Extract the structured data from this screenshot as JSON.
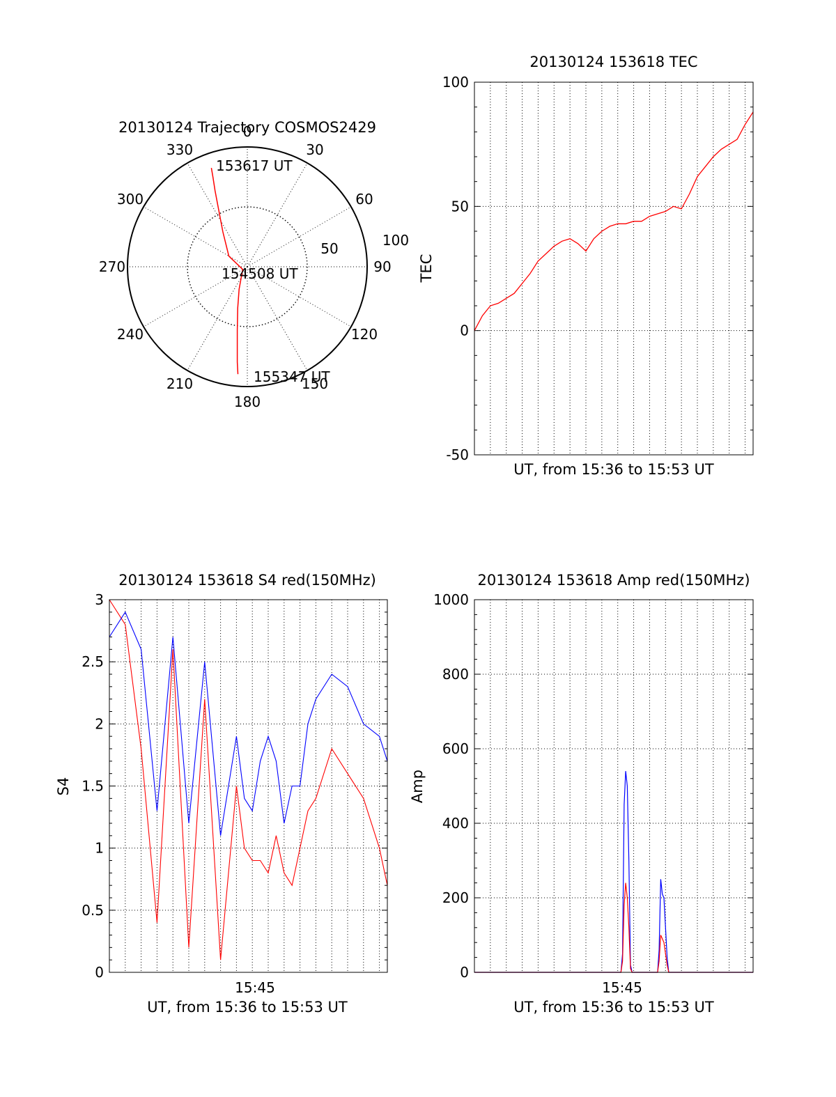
{
  "colors": {
    "red": "#ff0000",
    "blue": "#0000ff",
    "axis": "#000000"
  },
  "chart_data": [
    {
      "type": "polar-trajectory",
      "title": "20130124 Trajectory COSMOS2429",
      "azimuth_labels": [
        "0",
        "30",
        "60",
        "90",
        "120",
        "150",
        "180",
        "210",
        "240",
        "270",
        "300",
        "330"
      ],
      "radial_labels": [
        "50",
        "100"
      ],
      "elevation_range": [
        0,
        90
      ],
      "annotations": [
        "153617 UT",
        "154508 UT",
        "155347 UT"
      ],
      "series": [
        {
          "color": "red",
          "points": [
            {
              "az": 340,
              "el": 11
            },
            {
              "az": 339,
              "el": 18
            },
            {
              "az": 337,
              "el": 28
            },
            {
              "az": 334,
              "el": 40
            },
            {
              "az": 325,
              "el": 58
            },
            {
              "az": 300,
              "el": 74
            },
            {
              "az": 240,
              "el": 86
            },
            {
              "az": 200,
              "el": 72
            },
            {
              "az": 193,
              "el": 58
            },
            {
              "az": 189,
              "el": 42
            },
            {
              "az": 187,
              "el": 28
            },
            {
              "az": 186,
              "el": 18
            },
            {
              "az": 185,
              "el": 9
            }
          ]
        }
      ]
    },
    {
      "type": "line",
      "title": "20130124 153618 TEC",
      "xlabel": "UT, from 15:36 to 15:53 UT",
      "ylabel": "TEC",
      "xlim": [
        0,
        17.5
      ],
      "ylim": [
        -50,
        100
      ],
      "yticks": [
        "100",
        "50",
        "0",
        "-50"
      ],
      "grid": true,
      "series": [
        {
          "color": "red",
          "x": [
            0,
            0.5,
            1,
            1.5,
            2,
            2.5,
            3,
            3.5,
            4,
            4.5,
            5,
            5.5,
            6,
            6.5,
            7,
            7.5,
            8,
            8.5,
            9,
            9.5,
            10,
            10.5,
            11,
            11.5,
            12,
            12.5,
            13,
            13.5,
            14,
            14.5,
            15,
            15.5,
            16,
            16.5,
            17,
            17.5
          ],
          "y": [
            0,
            6,
            10,
            11,
            13,
            15,
            19,
            23,
            28,
            31,
            34,
            36,
            37,
            35,
            32,
            37,
            40,
            42,
            43,
            43,
            44,
            44,
            46,
            47,
            48,
            50,
            49,
            55,
            62,
            66,
            70,
            73,
            75,
            77,
            83,
            88
          ]
        }
      ]
    },
    {
      "type": "line",
      "title": "20130124 153618 S4 red(150MHz)",
      "xlabel": "UT, from 15:36 to 15:53 UT",
      "ylabel": "S4",
      "xlim": [
        0,
        17.5
      ],
      "ylim": [
        0,
        3
      ],
      "yticks": [
        "3",
        "2.5",
        "2",
        "1.5",
        "1",
        "0.5",
        "0"
      ],
      "xticks": [
        "15:45"
      ],
      "grid": true,
      "series": [
        {
          "name": "",
          "color": "red",
          "x": [
            0,
            1,
            2,
            3,
            4,
            5,
            6,
            7,
            8,
            8.5,
            9,
            9.5,
            10,
            10.5,
            11,
            11.5,
            12,
            12.5,
            13,
            14,
            15,
            16,
            17,
            17.5
          ],
          "y": [
            3,
            2.8,
            1.8,
            0.4,
            2.6,
            0.2,
            2.2,
            0.1,
            1.5,
            1.0,
            0.9,
            0.9,
            0.8,
            1.1,
            0.8,
            0.7,
            1.0,
            1.3,
            1.4,
            1.8,
            1.6,
            1.4,
            1.0,
            0.7
          ]
        },
        {
          "name": "",
          "color": "blue",
          "x": [
            0,
            1,
            2,
            3,
            4,
            5,
            6,
            7,
            8,
            8.5,
            9,
            9.5,
            10,
            10.5,
            11,
            11.5,
            12,
            12.5,
            13,
            14,
            15,
            16,
            17,
            17.5
          ],
          "y": [
            2.7,
            2.9,
            2.6,
            1.3,
            2.7,
            1.2,
            2.5,
            1.1,
            1.9,
            1.4,
            1.3,
            1.7,
            1.9,
            1.7,
            1.2,
            1.5,
            1.5,
            2.0,
            2.2,
            2.4,
            2.3,
            2.0,
            1.9,
            1.7
          ]
        }
      ]
    },
    {
      "type": "line",
      "title": "20130124 153618 Amp red(150MHz)",
      "xlabel": "UT, from 15:36 to 15:53 UT",
      "ylabel": "Amp",
      "xlim": [
        0,
        17.5
      ],
      "ylim": [
        0,
        1000
      ],
      "yticks": [
        "1000",
        "800",
        "600",
        "400",
        "200",
        "0"
      ],
      "xticks": [
        "15:45"
      ],
      "grid": true,
      "series": [
        {
          "color": "blue",
          "x": [
            0,
            9.2,
            9.3,
            9.4,
            9.5,
            9.6,
            9.7,
            9.8,
            9.9,
            10.0,
            11.5,
            11.6,
            11.7,
            11.8,
            11.9,
            12.0,
            12.1,
            12.2,
            12.3,
            17.5
          ],
          "y": [
            0,
            0,
            50,
            450,
            540,
            500,
            300,
            20,
            0,
            0,
            0,
            60,
            250,
            210,
            200,
            120,
            40,
            0,
            0,
            0
          ]
        },
        {
          "color": "red",
          "x": [
            0,
            9.2,
            9.3,
            9.4,
            9.5,
            9.6,
            9.7,
            9.8,
            9.9,
            10.0,
            11.5,
            11.6,
            11.7,
            11.8,
            11.9,
            12.0,
            12.1,
            12.2,
            12.3,
            17.5
          ],
          "y": [
            0,
            0,
            30,
            180,
            240,
            200,
            120,
            10,
            0,
            0,
            0,
            30,
            100,
            90,
            80,
            50,
            20,
            0,
            0,
            0
          ]
        }
      ]
    }
  ]
}
